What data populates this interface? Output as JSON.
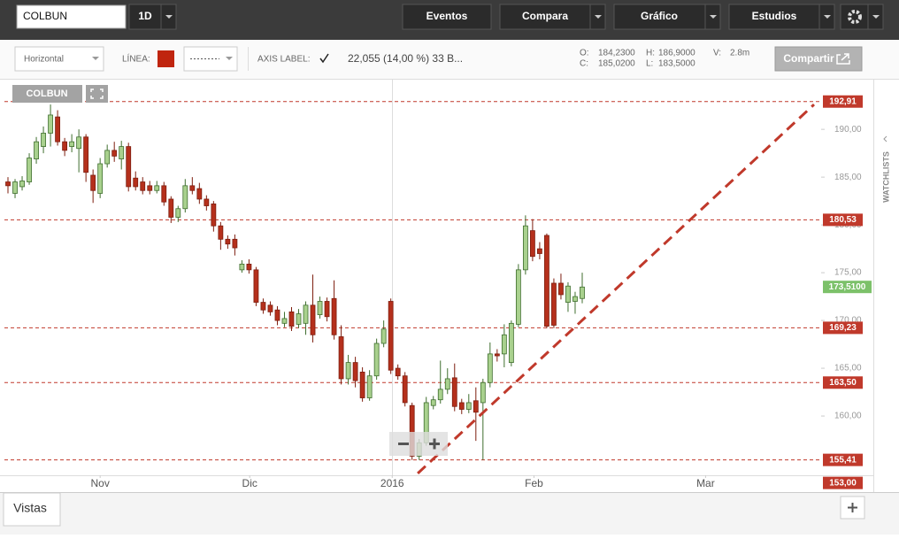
{
  "toolbar": {
    "symbol": "COLBUN",
    "interval": "1D",
    "buttons": [
      "Eventos",
      "Compara",
      "Gráfico",
      "Estudios"
    ]
  },
  "drawing_bar": {
    "style": "Horizontal",
    "line_label": "LÍNEA:",
    "axis_label": "AXIS LABEL:",
    "summary": "22,055 (14,00 %) 33 B...",
    "ohlc": [
      {
        "key": "O:",
        "value": "184,2300"
      },
      {
        "key": "H:",
        "value": "186,9000"
      },
      {
        "key": "V:",
        "value": "2.8m"
      },
      {
        "key": "C:",
        "value": "185,0200"
      },
      {
        "key": "L:",
        "value": "183,5000"
      }
    ],
    "share": "Compartir"
  },
  "sidebar": {
    "watchlists": "WATCHLISTS"
  },
  "footer": {
    "tab": "Vistas"
  },
  "chart_data": {
    "type": "candlestick",
    "x": [
      0,
      1,
      2,
      3,
      4,
      5,
      6,
      7,
      8,
      9,
      10,
      11,
      12,
      13,
      14,
      15,
      16,
      17,
      18,
      19,
      20,
      21,
      22,
      23,
      24,
      25,
      26,
      27,
      28,
      29,
      30,
      31,
      32,
      33,
      34,
      35,
      36,
      37,
      38,
      39,
      40,
      41,
      42,
      43,
      44,
      45,
      46,
      47,
      48,
      49,
      50,
      51,
      52,
      53,
      54,
      55,
      56,
      57,
      58,
      59,
      60,
      61,
      62,
      63,
      64,
      65,
      66,
      67,
      68,
      69,
      70,
      71,
      72,
      73,
      74,
      75,
      76,
      77,
      78,
      79,
      80,
      81
    ],
    "series": [
      {
        "name": "COLBUN",
        "open": [
          184.5,
          183.3,
          184.0,
          184.5,
          186.9,
          188.2,
          189.6,
          191.3,
          188.7,
          188.2,
          188.0,
          189.2,
          185.2,
          183.3,
          186.4,
          187.8,
          186.9,
          188.2,
          184.9,
          184.5,
          184.1,
          183.6,
          184.1,
          182.7,
          180.8,
          181.7,
          184.1,
          183.8,
          182.7,
          182.2,
          179.9,
          178.5,
          178.5,
          175.3,
          175.9,
          175.3,
          171.9,
          171.6,
          171.1,
          169.7,
          170.9,
          169.6,
          169.7,
          171.6,
          170.6,
          172.0,
          172.3,
          168.3,
          163.9,
          165.6,
          164.6,
          161.9,
          164.2,
          167.6,
          172.0,
          165.0,
          164.2,
          161.1,
          155.8,
          157.2,
          161.1,
          161.7,
          162.8,
          164.0,
          161.4,
          160.7,
          161.6,
          161.4,
          163.5,
          166.5,
          166.5,
          165.6,
          169.6,
          175.3,
          179.4,
          177.5,
          178.9,
          173.9,
          173.9,
          171.9,
          172.0,
          172.3
        ],
        "high": [
          185.0,
          184.8,
          185.1,
          187.5,
          189.2,
          190.3,
          192.6,
          192.0,
          189.1,
          189.5,
          190.0,
          189.5,
          185.8,
          187.0,
          188.4,
          188.7,
          188.8,
          188.6,
          185.6,
          185.0,
          184.6,
          184.6,
          184.5,
          183.0,
          182.0,
          184.8,
          185.0,
          184.4,
          183.1,
          182.5,
          180.3,
          178.9,
          179.0,
          176.3,
          176.4,
          175.6,
          172.3,
          172.0,
          171.5,
          170.9,
          171.4,
          171.2,
          172.0,
          174.8,
          172.5,
          172.4,
          174.2,
          169.5,
          166.4,
          166.2,
          165.1,
          164.8,
          168.1,
          170.0,
          172.3,
          165.4,
          164.6,
          161.4,
          157.6,
          162.0,
          162.1,
          165.8,
          165.0,
          165.5,
          161.8,
          162.3,
          163.0,
          163.9,
          167.7,
          167.0,
          169.6,
          170.0,
          175.9,
          181.0,
          180.6,
          178.2,
          179.1,
          174.4,
          174.9,
          174.0,
          173.0,
          175.0
        ],
        "low": [
          183.3,
          182.8,
          183.6,
          184.2,
          186.4,
          187.5,
          188.2,
          188.3,
          187.2,
          187.6,
          185.5,
          184.5,
          182.3,
          182.8,
          186.0,
          186.6,
          185.8,
          183.5,
          183.6,
          183.2,
          183.2,
          183.3,
          182.0,
          180.2,
          180.3,
          181.3,
          183.2,
          182.2,
          181.5,
          179.3,
          177.4,
          177.5,
          176.8,
          175.0,
          174.9,
          171.5,
          170.7,
          170.5,
          169.5,
          169.3,
          168.9,
          169.2,
          168.5,
          167.7,
          170.2,
          169.9,
          168.0,
          163.3,
          163.3,
          163.0,
          161.5,
          161.6,
          163.8,
          167.2,
          164.4,
          163.8,
          161.0,
          155.4,
          155.4,
          156.9,
          160.7,
          161.3,
          162.3,
          160.5,
          160.2,
          160.3,
          157.4,
          155.4,
          163.0,
          165.7,
          165.1,
          165.2,
          169.3,
          174.8,
          176.2,
          176.4,
          169.2,
          169.2,
          172.2,
          170.9,
          170.7,
          171.8
        ],
        "close": [
          184.1,
          184.5,
          184.6,
          187.0,
          188.7,
          189.6,
          191.5,
          188.7,
          187.8,
          188.7,
          189.2,
          185.5,
          183.6,
          186.4,
          187.8,
          187.2,
          188.2,
          184.0,
          184.0,
          183.6,
          183.6,
          184.1,
          182.4,
          180.8,
          181.7,
          184.1,
          183.6,
          182.7,
          182.0,
          179.9,
          178.5,
          178.0,
          177.6,
          175.9,
          175.3,
          171.9,
          171.1,
          170.9,
          170.0,
          170.2,
          169.4,
          170.7,
          171.6,
          168.5,
          172.0,
          170.4,
          168.5,
          163.9,
          165.6,
          163.7,
          161.9,
          164.2,
          167.6,
          169.1,
          164.8,
          164.2,
          161.4,
          155.8,
          157.2,
          161.4,
          161.7,
          162.8,
          163.9,
          161.0,
          160.7,
          161.4,
          160.4,
          163.5,
          166.5,
          166.3,
          168.5,
          169.7,
          175.3,
          179.9,
          176.7,
          177.0,
          169.4,
          169.5,
          172.7,
          173.6,
          172.5,
          173.5
        ]
      }
    ],
    "up_color": "#a9d18e",
    "up_border": "#3f6e2e",
    "down_color": "#b5301c",
    "down_border": "#7d1d0e",
    "xlim": [
      -0.5,
      114.7
    ],
    "xticks": [
      {
        "value": 13,
        "label": "Nov"
      },
      {
        "value": 34.1,
        "label": "Dic"
      },
      {
        "value": 54.2,
        "label": "2016"
      },
      {
        "value": 74.2,
        "label": "Feb"
      },
      {
        "value": 98.4,
        "label": "Mar"
      }
    ],
    "ylim": [
      153.8,
      195.2
    ],
    "yticks": [
      {
        "value": 160,
        "label": "160,00"
      },
      {
        "value": 165,
        "label": "165,00"
      },
      {
        "value": 170,
        "label": "170,00"
      },
      {
        "value": 175,
        "label": "175,00"
      },
      {
        "value": 180,
        "label": "180,00"
      },
      {
        "value": 185,
        "label": "185,00"
      },
      {
        "value": 190,
        "label": "190,00"
      }
    ],
    "hlines": [
      {
        "value": 192.91,
        "label": "192,91"
      },
      {
        "value": 180.53,
        "label": "180,53"
      },
      {
        "value": 169.23,
        "label": "169,23"
      },
      {
        "value": 163.5,
        "label": "163,50"
      },
      {
        "value": 155.41,
        "label": "155,41"
      }
    ],
    "hline_color": "#c0392b",
    "trendline": {
      "x": [
        57.8,
        113.7
      ],
      "y": [
        154.0,
        192.6
      ],
      "color": "#c0392b"
    },
    "last_price": {
      "value": 173.51,
      "label": "173,5100",
      "color": "#7cc16a"
    },
    "axis_bottom": {
      "value": 153,
      "label": "153,00"
    }
  }
}
